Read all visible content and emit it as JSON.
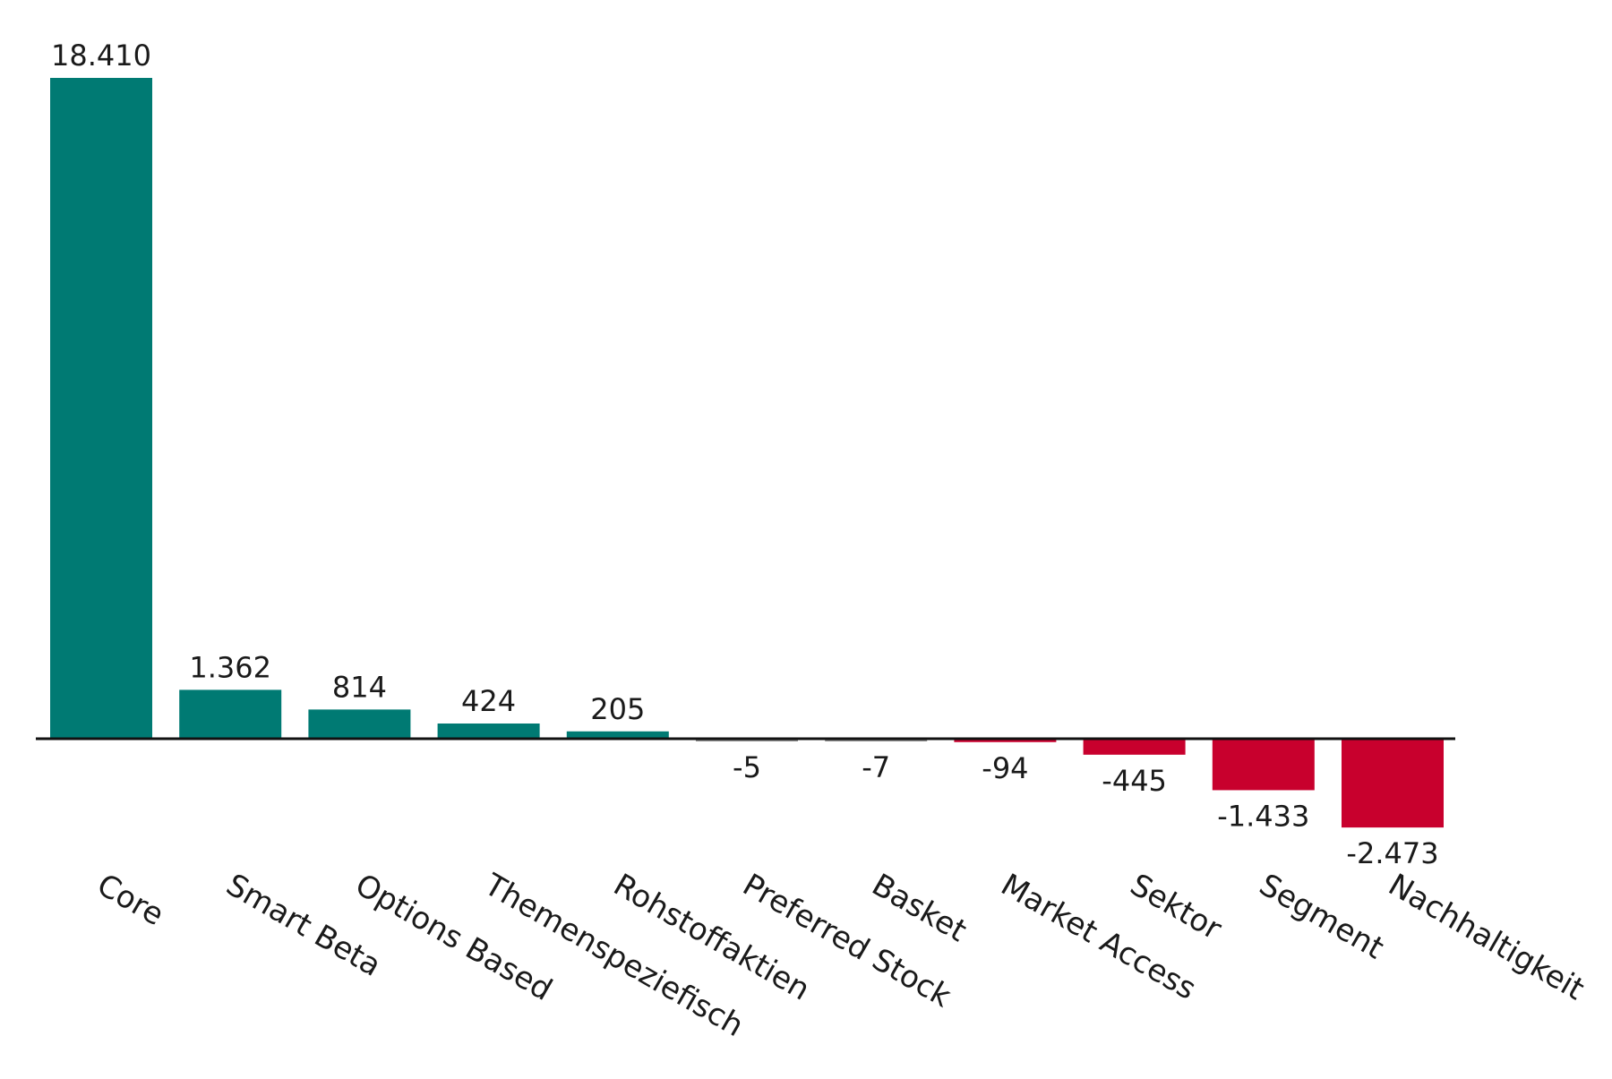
{
  "chart_data": {
    "type": "bar",
    "categories": [
      "Core",
      "Smart Beta",
      "Options Based",
      "Themenspeziefisch",
      "Rohstoffaktien",
      "Preferred Stock",
      "Basket",
      "Market Access",
      "Sektor",
      "Segment",
      "Nachhaltigkeit"
    ],
    "values": [
      18410,
      1362,
      814,
      424,
      205,
      -5,
      -7,
      -94,
      -445,
      -1433,
      -2473
    ],
    "value_labels": [
      "18.410",
      "1.362",
      "814",
      "424",
      "205",
      "-5",
      "-7",
      "-94",
      "-445",
      "-1.433",
      "-2.473"
    ],
    "title": "",
    "xlabel": "",
    "ylabel": "",
    "ylim": [
      -2473,
      18410
    ],
    "grid": false,
    "legend": "none",
    "colors": {
      "positive": "#007a73",
      "negative": "#c8002d",
      "neutral": "#8c8c8c",
      "baseline": "#111111"
    }
  }
}
